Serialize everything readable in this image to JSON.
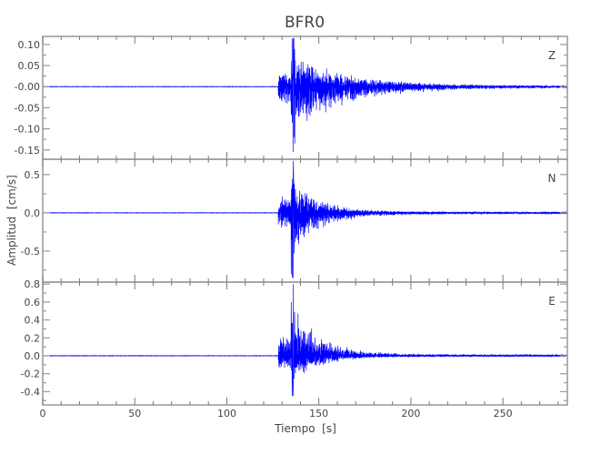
{
  "chart_data": {
    "type": "line",
    "title": "BFR0",
    "xlabel": "Tiempo  [s]",
    "ylabel": "Amplitud  [cm/s]",
    "xlim": [
      0,
      285
    ],
    "xticks": [
      0,
      50,
      100,
      150,
      200,
      250
    ],
    "grid": false,
    "line_color": "#0000ff",
    "panels": [
      {
        "name": "Z",
        "ylim": [
          -0.172,
          0.119
        ],
        "yticks": [
          0.1,
          0.05,
          0.0,
          -0.05,
          -0.1,
          -0.15
        ],
        "ytick_labels": [
          "0.10",
          "0.05",
          "-0.00",
          "-0.05",
          "-0.10",
          "-0.15"
        ],
        "minor_step": 0.025,
        "onset_time": 128,
        "peak_time": 136,
        "max": 0.115,
        "min": -0.155,
        "decay_s": 30
      },
      {
        "name": "N",
        "ylim": [
          -0.905,
          0.7
        ],
        "yticks": [
          0.5,
          0.0,
          -0.5
        ],
        "ytick_labels": [
          "0.5",
          "0.0",
          "-0.5"
        ],
        "minor_step": 0.25,
        "onset_time": 128,
        "peak_time": 136,
        "max": 0.68,
        "min": -0.85,
        "decay_s": 15
      },
      {
        "name": "E",
        "ylim": [
          -0.548,
          0.822
        ],
        "yticks": [
          0.8,
          0.6,
          0.4,
          0.2,
          0.0,
          -0.2,
          -0.4
        ],
        "ytick_labels": [
          "0.8",
          "0.6",
          "0.4",
          "0.2",
          "0.0",
          "-0.2",
          "-0.4"
        ],
        "minor_step": 0.1,
        "onset_time": 128,
        "peak_time": 136,
        "max": 0.8,
        "min": -0.45,
        "decay_s": 15
      }
    ]
  }
}
